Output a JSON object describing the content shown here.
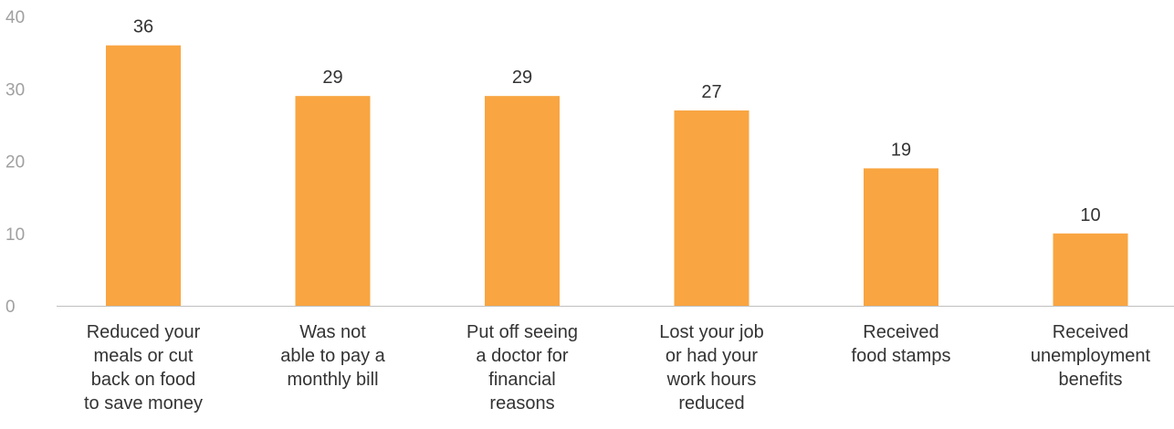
{
  "chart_data": {
    "type": "bar",
    "categories": [
      "Reduced your meals or cut back on food to save money",
      "Was not able to pay a monthly bill",
      "Put off seeing a doctor for financial reasons",
      "Lost your job or had your work hours reduced",
      "Received food stamps",
      "Received unemployment benefits"
    ],
    "category_lines": [
      [
        "Reduced your",
        "meals or cut",
        "back on food",
        "to save money"
      ],
      [
        "Was not",
        "able to pay a",
        "monthly bill"
      ],
      [
        "Put off seeing",
        "a doctor for",
        "financial",
        "reasons"
      ],
      [
        "Lost your job",
        "or had your",
        "work hours",
        "reduced"
      ],
      [
        "Received",
        "food stamps"
      ],
      [
        "Received",
        "unemployment",
        "benefits"
      ]
    ],
    "values": [
      36,
      29,
      29,
      27,
      19,
      10
    ],
    "data_labels": [
      "36",
      "29",
      "29",
      "27",
      "19",
      "10"
    ],
    "ylim": [
      0,
      40
    ],
    "yticks": [
      "0",
      "10",
      "20",
      "30",
      "40"
    ],
    "grid": false,
    "title": "",
    "xlabel": "",
    "ylabel": "",
    "colors": {
      "bar": "#F9A541",
      "axis": "#bfbfbf",
      "tick_text": "#a0a0a0",
      "label_text": "#333333"
    }
  }
}
